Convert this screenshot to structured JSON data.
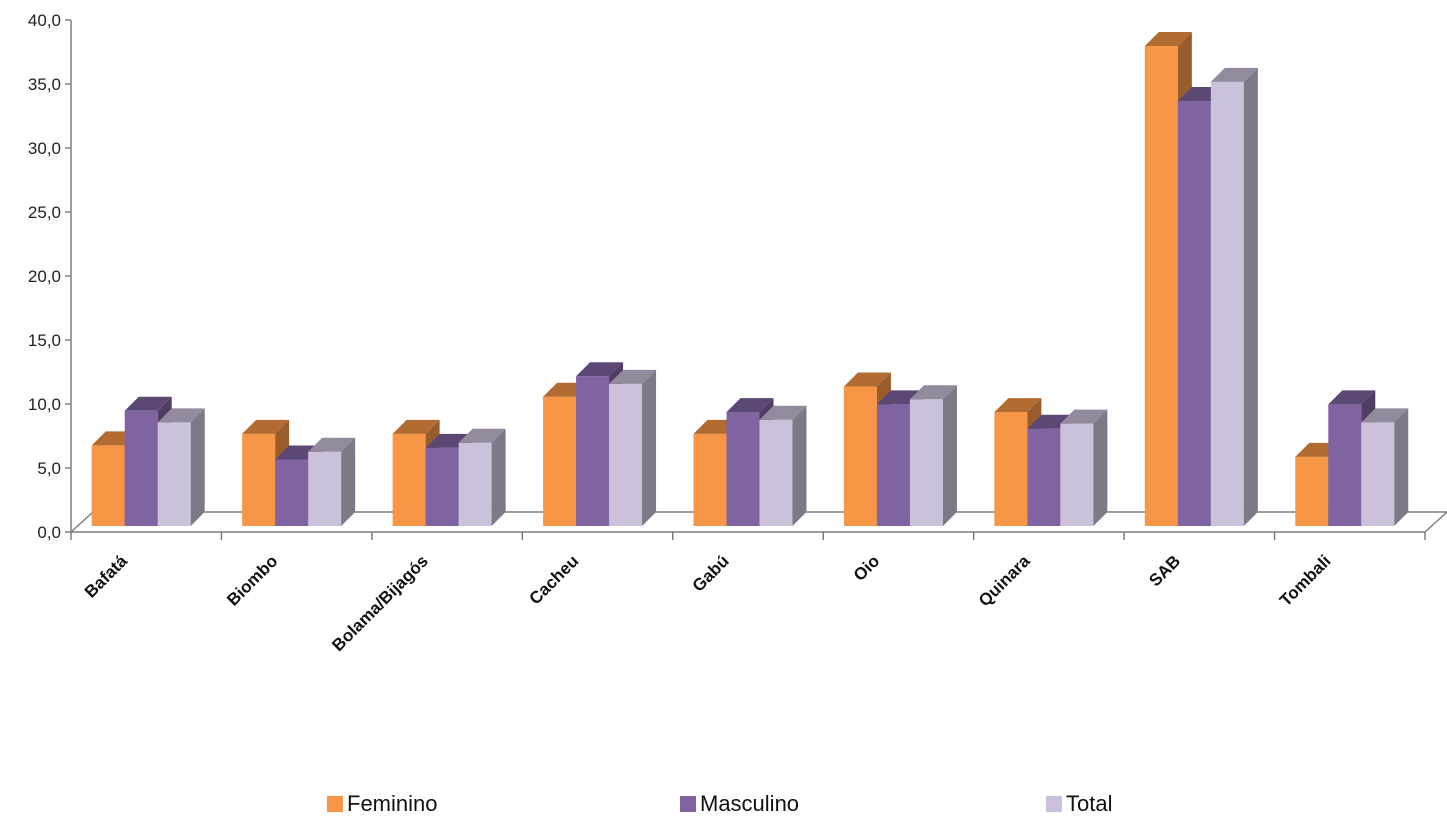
{
  "chart_data": {
    "type": "bar",
    "style": "3d-clustered-column",
    "categories": [
      "Bafatá",
      "Biombo",
      "Bolama/Bijagós",
      "Cacheu",
      "Gabú",
      "Oio",
      "Quinara",
      "SAB",
      "Tombali"
    ],
    "series": [
      {
        "name": "Feminino",
        "color": "#F79646",
        "values": [
          6.3,
          7.2,
          7.2,
          10.1,
          7.2,
          10.9,
          8.9,
          37.5,
          5.4
        ]
      },
      {
        "name": "Masculino",
        "color": "#8064A2",
        "values": [
          9.0,
          5.2,
          6.1,
          11.7,
          8.9,
          9.5,
          7.6,
          33.2,
          9.5
        ]
      },
      {
        "name": "Total",
        "color": "#CCC1DA",
        "values": [
          8.1,
          5.8,
          6.5,
          11.1,
          8.3,
          9.9,
          8.0,
          34.7,
          8.1
        ]
      }
    ],
    "ylim": [
      0,
      40
    ],
    "yticks": [
      "0,0",
      "5,0",
      "10,0",
      "15,0",
      "20,0",
      "25,0",
      "30,0",
      "35,0",
      "40,0"
    ],
    "legend_position": "bottom",
    "grid": false
  }
}
